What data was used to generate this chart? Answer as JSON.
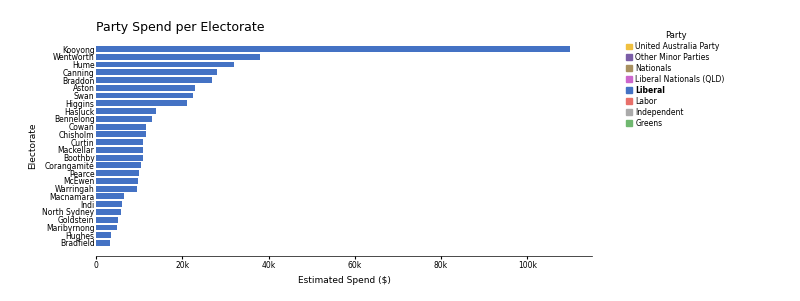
{
  "title": "Party Spend per Electorate",
  "xlabel": "Estimated Spend ($)",
  "ylabel": "Electorate",
  "electorates": [
    "Kooyong",
    "Wentworth",
    "Hume",
    "Canning",
    "Braddon",
    "Aston",
    "Swan",
    "Higgins",
    "Hasluck",
    "Bennelong",
    "Cowan",
    "Chisholm",
    "Curtin",
    "Mackellar",
    "Boothby",
    "Corangamite",
    "Pearce",
    "McEwen",
    "Warringah",
    "Macnamara",
    "Indi",
    "North Sydney",
    "Goldstein",
    "Maribyrnong",
    "Hughes",
    "Bradfield"
  ],
  "values": [
    110000,
    38000,
    32000,
    28000,
    27000,
    23000,
    22500,
    21000,
    14000,
    13000,
    11500,
    11500,
    11000,
    11000,
    10800,
    10500,
    10000,
    9800,
    9500,
    6500,
    6000,
    5800,
    5000,
    4800,
    3500,
    3200
  ],
  "bar_color": "#4472C4",
  "legend_parties": [
    "United Australia Party",
    "Other Minor Parties",
    "Nationals",
    "Liberal Nationals (QLD)",
    "Liberal",
    "Labor",
    "Independent",
    "Greens"
  ],
  "legend_colors": [
    "#F0C040",
    "#7B5EA7",
    "#A89060",
    "#CC66CC",
    "#4472C4",
    "#E8706A",
    "#AAAAAA",
    "#70B870"
  ],
  "legend_bold": [
    false,
    false,
    false,
    false,
    true,
    false,
    false,
    false
  ],
  "bg_color": "#FFFFFF",
  "xtick_labels": [
    "0",
    "20k",
    "40k",
    "60k",
    "80k",
    "100k"
  ],
  "xtick_values": [
    0,
    20000,
    40000,
    60000,
    80000,
    100000
  ],
  "xlim": [
    0,
    115000
  ],
  "title_fontsize": 9,
  "label_fontsize": 6.5,
  "tick_fontsize": 5.5,
  "bar_tick_fontsize": 5.5,
  "legend_title_fontsize": 6,
  "legend_fontsize": 5.5
}
